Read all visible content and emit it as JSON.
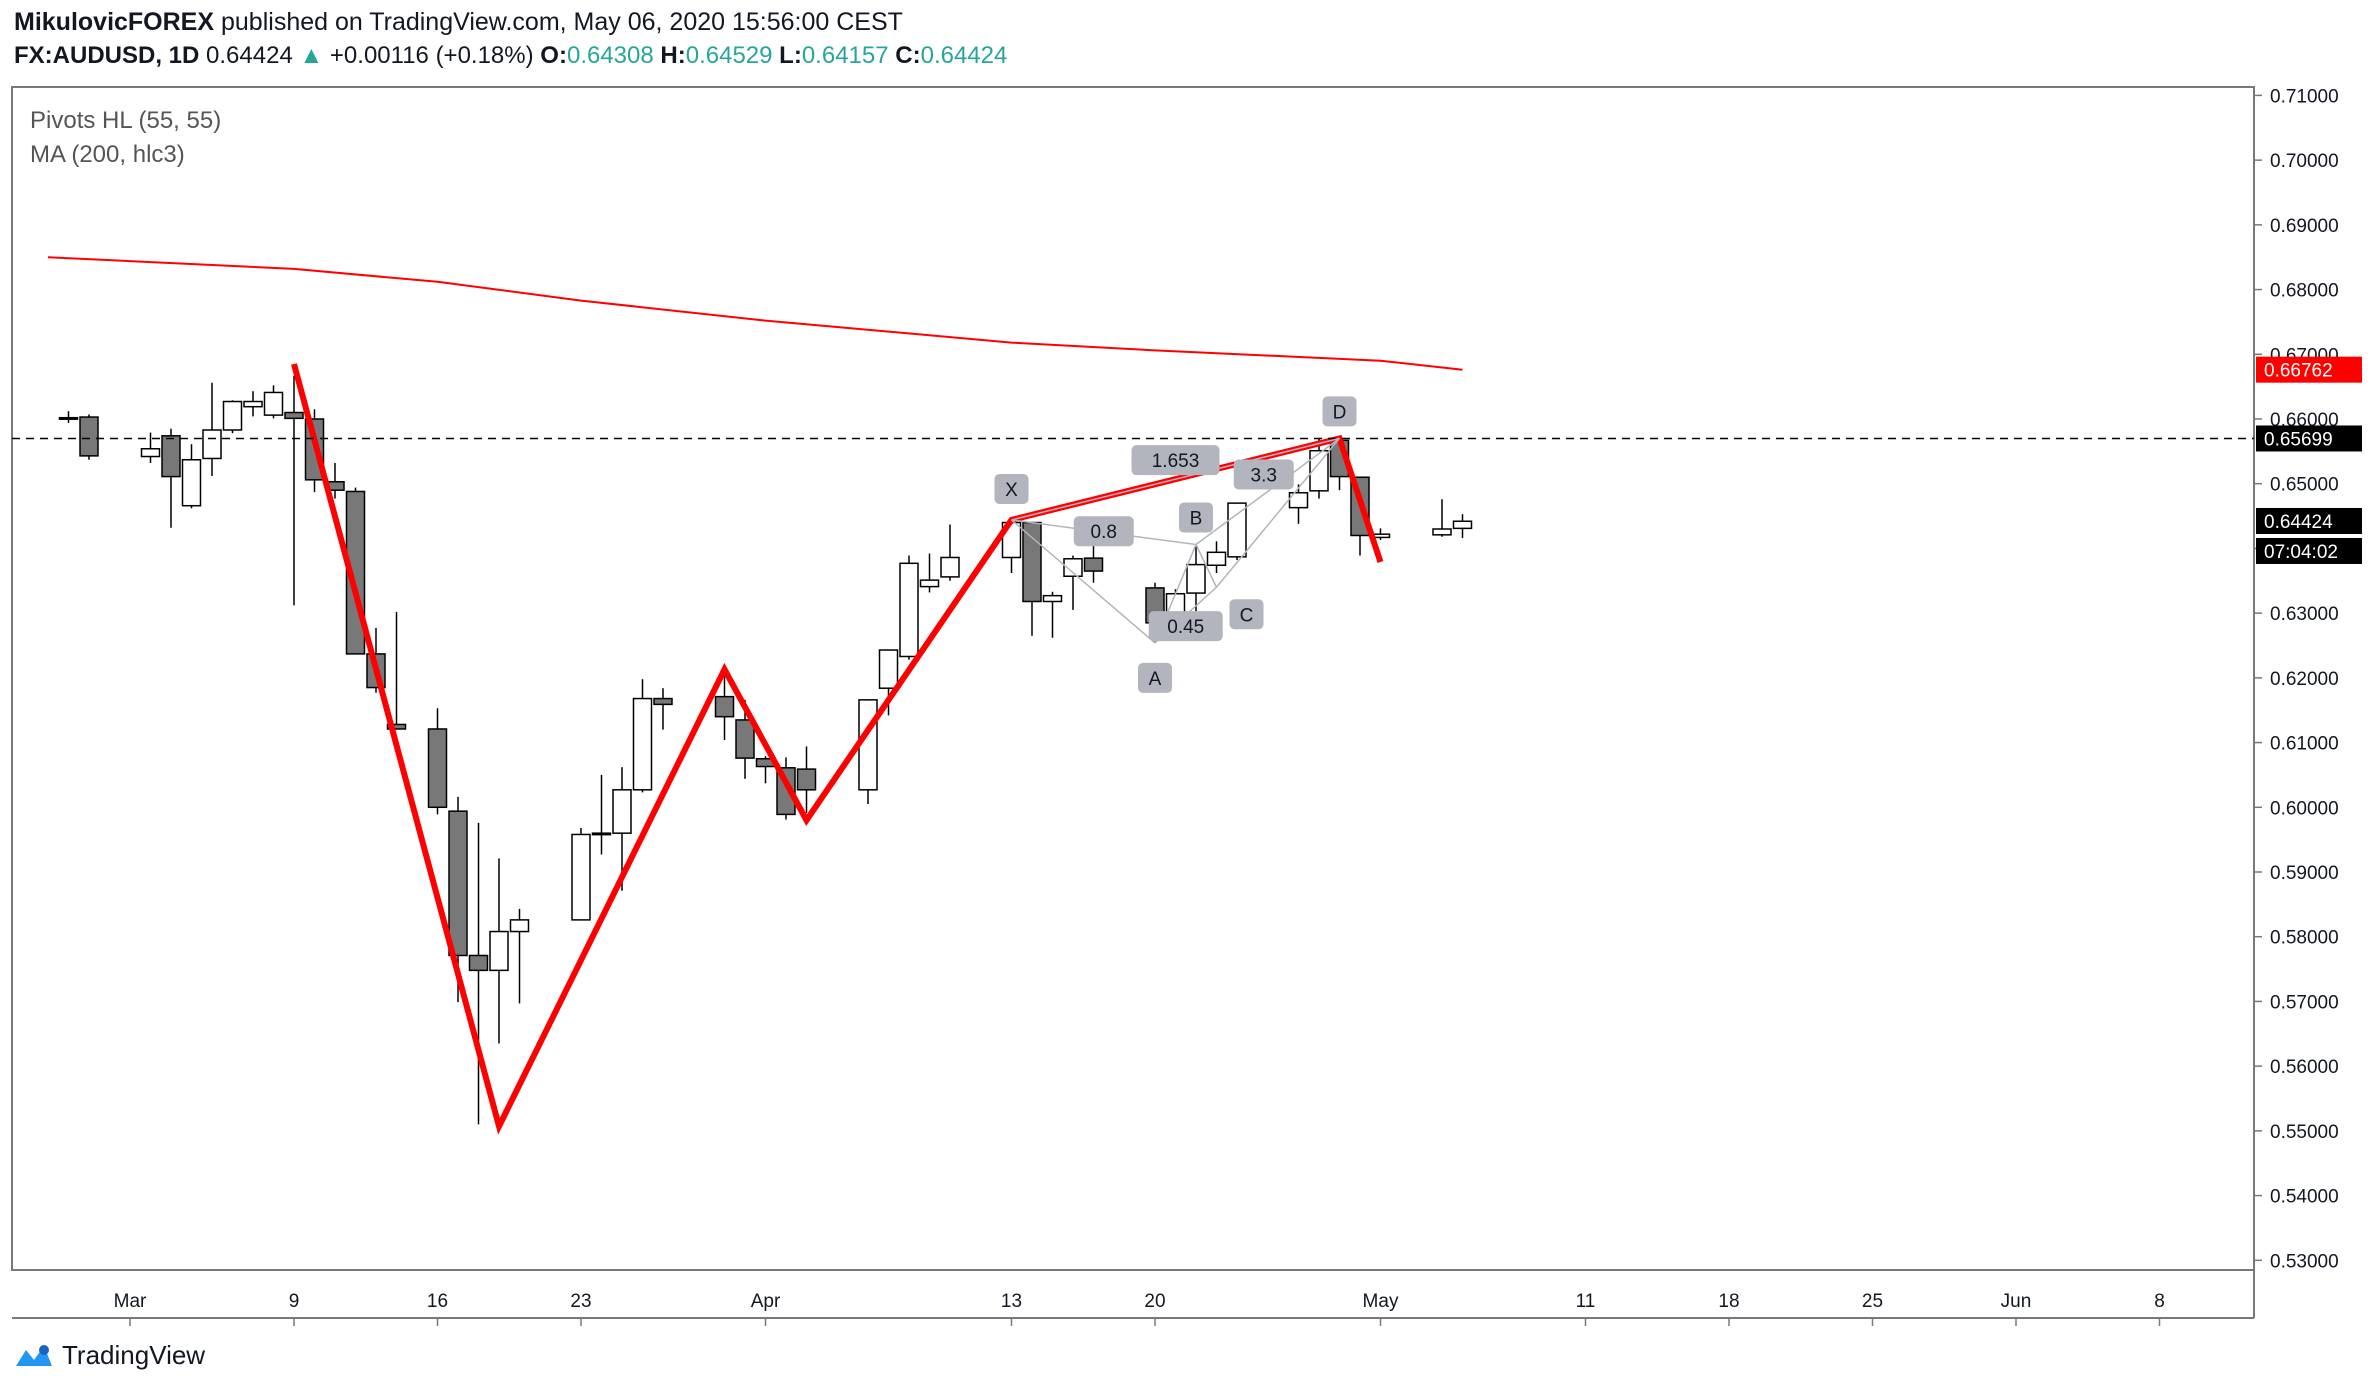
{
  "header": {
    "author": "MikulovicFOREX",
    "published_text": "published on TradingView.com, May 06, 2020 15:56:00 CEST",
    "symbol": "FX:AUDUSD",
    "interval": "1D",
    "last": "0.64424",
    "change": "+0.00116 (+0.18%)",
    "open_label": "O:",
    "open": "0.64308",
    "high_label": "H:",
    "high": "0.64529",
    "low_label": "L:",
    "low": "0.64157",
    "close_label": "C:",
    "close": "0.64424"
  },
  "indicators": {
    "pivots": "Pivots HL (55, 55)",
    "ma": "MA (200, hlc3)"
  },
  "footer": {
    "brand": "TradingView"
  },
  "colors": {
    "up_fill": "#ffffff",
    "down_fill": "#787878",
    "candle_border": "#000000",
    "zigzag": "#ff0000",
    "ma": "#ff0000",
    "pattern": "#b2b5be",
    "label_bg": "#b2b5be",
    "axis_text": "#131722"
  },
  "chart_data": {
    "type": "candlestick",
    "title": "",
    "y_axis": {
      "ticks": [
        "0.71000",
        "0.70000",
        "0.69000",
        "0.68000",
        "0.67000",
        "0.66000",
        "0.65000",
        "0.64000",
        "0.63000",
        "0.62000",
        "0.61000",
        "0.60000",
        "0.59000",
        "0.58000",
        "0.57000",
        "0.56000",
        "0.55000",
        "0.54000",
        "0.53000"
      ],
      "ylim": [
        0.5285,
        0.7113
      ]
    },
    "x_axis": {
      "ticks": [
        "Mar",
        "9",
        "16",
        "23",
        "Apr",
        "13",
        "20",
        "May",
        "11",
        "18",
        "25",
        "Jun",
        "8"
      ]
    },
    "candles": [
      {
        "d": "2020-02-27",
        "o": 0.6602,
        "h": 0.6612,
        "l": 0.6594,
        "c": 0.6602
      },
      {
        "d": "2020-02-28",
        "o": 0.6603,
        "h": 0.6607,
        "l": 0.6537,
        "c": 0.6543
      },
      {
        "d": "2020-03-02",
        "o": 0.6542,
        "h": 0.6579,
        "l": 0.6532,
        "c": 0.6554
      },
      {
        "d": "2020-03-03",
        "o": 0.6574,
        "h": 0.6585,
        "l": 0.6432,
        "c": 0.6511
      },
      {
        "d": "2020-03-04",
        "o": 0.6466,
        "h": 0.6561,
        "l": 0.6462,
        "c": 0.6537
      },
      {
        "d": "2020-03-05",
        "o": 0.6539,
        "h": 0.6656,
        "l": 0.6512,
        "c": 0.6583
      },
      {
        "d": "2020-03-06",
        "o": 0.6583,
        "h": 0.6629,
        "l": 0.6578,
        "c": 0.6627
      },
      {
        "d": "2020-03-07",
        "o": 0.6619,
        "h": 0.6643,
        "l": 0.6604,
        "c": 0.6627
      },
      {
        "d": "2020-03-08",
        "o": 0.6606,
        "h": 0.6652,
        "l": 0.6601,
        "c": 0.6641
      },
      {
        "d": "2020-03-09",
        "o": 0.661,
        "h": 0.6667,
        "l": 0.6312,
        "c": 0.6601
      },
      {
        "d": "2020-03-10",
        "o": 0.66,
        "h": 0.6615,
        "l": 0.6487,
        "c": 0.6506
      },
      {
        "d": "2020-03-11",
        "o": 0.6503,
        "h": 0.6532,
        "l": 0.6477,
        "c": 0.649
      },
      {
        "d": "2020-03-12",
        "o": 0.6488,
        "h": 0.6494,
        "l": 0.6237,
        "c": 0.6237
      },
      {
        "d": "2020-03-13",
        "o": 0.6237,
        "h": 0.6277,
        "l": 0.6177,
        "c": 0.6185
      },
      {
        "d": "2020-03-14",
        "o": 0.6128,
        "h": 0.6302,
        "l": 0.6121,
        "c": 0.6121
      },
      {
        "d": "2020-03-16",
        "o": 0.6121,
        "h": 0.6153,
        "l": 0.5989,
        "c": 0.6
      },
      {
        "d": "2020-03-17",
        "o": 0.5994,
        "h": 0.6016,
        "l": 0.5699,
        "c": 0.5771
      },
      {
        "d": "2020-03-18",
        "o": 0.5771,
        "h": 0.5976,
        "l": 0.551,
        "c": 0.5748
      },
      {
        "d": "2020-03-19",
        "o": 0.5748,
        "h": 0.5921,
        "l": 0.5635,
        "c": 0.5808
      },
      {
        "d": "2020-03-20",
        "o": 0.5808,
        "h": 0.5843,
        "l": 0.5697,
        "c": 0.5826
      },
      {
        "d": "2020-03-23",
        "o": 0.5826,
        "h": 0.5968,
        "l": 0.5826,
        "c": 0.5958
      },
      {
        "d": "2020-03-24",
        "o": 0.5958,
        "h": 0.605,
        "l": 0.5927,
        "c": 0.596
      },
      {
        "d": "2020-03-25",
        "o": 0.596,
        "h": 0.6062,
        "l": 0.5871,
        "c": 0.6027
      },
      {
        "d": "2020-03-26",
        "o": 0.6027,
        "h": 0.6198,
        "l": 0.6023,
        "c": 0.6168
      },
      {
        "d": "2020-03-27",
        "o": 0.6168,
        "h": 0.6184,
        "l": 0.612,
        "c": 0.6159
      },
      {
        "d": "2020-03-30",
        "o": 0.6171,
        "h": 0.6213,
        "l": 0.6104,
        "c": 0.614
      },
      {
        "d": "2020-03-31",
        "o": 0.6135,
        "h": 0.6166,
        "l": 0.6044,
        "c": 0.6076
      },
      {
        "d": "2020-04-01",
        "o": 0.6075,
        "h": 0.6079,
        "l": 0.6037,
        "c": 0.6063
      },
      {
        "d": "2020-04-02",
        "o": 0.6061,
        "h": 0.6077,
        "l": 0.5981,
        "c": 0.5989
      },
      {
        "d": "2020-04-03",
        "o": 0.6059,
        "h": 0.6094,
        "l": 0.5991,
        "c": 0.6027
      },
      {
        "d": "2020-04-06",
        "o": 0.6027,
        "h": 0.6166,
        "l": 0.6005,
        "c": 0.6166
      },
      {
        "d": "2020-04-07",
        "o": 0.6184,
        "h": 0.6238,
        "l": 0.6142,
        "c": 0.6243
      },
      {
        "d": "2020-04-08",
        "o": 0.6233,
        "h": 0.6389,
        "l": 0.6228,
        "c": 0.6377
      },
      {
        "d": "2020-04-09",
        "o": 0.6341,
        "h": 0.6392,
        "l": 0.6332,
        "c": 0.6351
      },
      {
        "d": "2020-04-10",
        "o": 0.6356,
        "h": 0.6437,
        "l": 0.635,
        "c": 0.6386
      },
      {
        "d": "2020-04-13",
        "o": 0.6386,
        "h": 0.6444,
        "l": 0.6362,
        "c": 0.644
      },
      {
        "d": "2020-04-14",
        "o": 0.644,
        "h": 0.6441,
        "l": 0.6265,
        "c": 0.6318
      },
      {
        "d": "2020-04-15",
        "o": 0.6318,
        "h": 0.6333,
        "l": 0.6262,
        "c": 0.6327
      },
      {
        "d": "2020-04-16",
        "o": 0.6357,
        "h": 0.6389,
        "l": 0.6305,
        "c": 0.6384
      },
      {
        "d": "2020-04-17",
        "o": 0.6385,
        "h": 0.6408,
        "l": 0.6347,
        "c": 0.6365
      },
      {
        "d": "2020-04-20",
        "o": 0.6339,
        "h": 0.6347,
        "l": 0.6254,
        "c": 0.6285
      },
      {
        "d": "2020-04-21",
        "o": 0.6285,
        "h": 0.6337,
        "l": 0.627,
        "c": 0.633
      },
      {
        "d": "2020-04-22",
        "o": 0.6331,
        "h": 0.6406,
        "l": 0.6294,
        "c": 0.6375
      },
      {
        "d": "2020-04-23",
        "o": 0.6374,
        "h": 0.6411,
        "l": 0.6362,
        "c": 0.6394
      },
      {
        "d": "2020-04-24",
        "o": 0.6387,
        "h": 0.6463,
        "l": 0.6382,
        "c": 0.647
      },
      {
        "d": "2020-04-27",
        "o": 0.6463,
        "h": 0.6499,
        "l": 0.6438,
        "c": 0.6486
      },
      {
        "d": "2020-04-28",
        "o": 0.6489,
        "h": 0.6569,
        "l": 0.6477,
        "c": 0.6551
      },
      {
        "d": "2020-04-29",
        "o": 0.6567,
        "h": 0.657,
        "l": 0.649,
        "c": 0.6511
      },
      {
        "d": "2020-04-30",
        "o": 0.651,
        "h": 0.651,
        "l": 0.6389,
        "c": 0.642
      },
      {
        "d": "2020-05-01",
        "o": 0.6417,
        "h": 0.6431,
        "l": 0.6413,
        "c": 0.6422
      },
      {
        "d": "2020-05-04",
        "o": 0.6421,
        "h": 0.6476,
        "l": 0.6418,
        "c": 0.643
      },
      {
        "d": "2020-05-05",
        "o": 0.6431,
        "h": 0.6453,
        "l": 0.6416,
        "c": 0.6442
      }
    ],
    "moving_average": {
      "name": "MA (200, hlc3)",
      "points": [
        {
          "d": "2020-02-26",
          "v": 0.685
        },
        {
          "d": "2020-03-09",
          "v": 0.6832
        },
        {
          "d": "2020-03-16",
          "v": 0.6812
        },
        {
          "d": "2020-03-23",
          "v": 0.6783
        },
        {
          "d": "2020-04-01",
          "v": 0.6752
        },
        {
          "d": "2020-04-13",
          "v": 0.6718
        },
        {
          "d": "2020-04-20",
          "v": 0.6706
        },
        {
          "d": "2020-05-01",
          "v": 0.669
        },
        {
          "d": "2020-05-05",
          "v": 0.6676
        }
      ]
    },
    "zigzag": [
      {
        "d": "2020-03-09",
        "v": 0.6685
      },
      {
        "d": "2020-03-19",
        "v": 0.5507
      },
      {
        "d": "2020-03-30",
        "v": 0.6213
      },
      {
        "d": "2020-04-03",
        "v": 0.598
      },
      {
        "d": "2020-04-13",
        "v": 0.6444
      },
      {
        "d": "2020-04-29",
        "v": 0.657
      },
      {
        "d": "2020-05-01",
        "v": 0.6379
      }
    ],
    "harmonic_pattern": {
      "points": [
        {
          "label": "X",
          "d": "2020-04-13",
          "v": 0.6444
        },
        {
          "label": "A",
          "d": "2020-04-20",
          "v": 0.6254
        },
        {
          "label": "B",
          "d": "2020-04-22",
          "v": 0.6406
        },
        {
          "label": "C",
          "d": "2020-04-23",
          "v": 0.634
        },
        {
          "label": "D",
          "d": "2020-04-29",
          "v": 0.657
        }
      ],
      "ratios": [
        {
          "label": "1.653",
          "between": "X-D"
        },
        {
          "label": "0.8",
          "between": "X-B"
        },
        {
          "label": "3.3",
          "between": "B-D"
        },
        {
          "label": "0.45",
          "between": "A-C"
        }
      ]
    },
    "horizontal_line": {
      "value": 0.65699,
      "style": "dashed"
    },
    "price_labels": [
      {
        "value": 0.66762,
        "text": "0.66762",
        "color": "#ff0000"
      },
      {
        "value": 0.65699,
        "text": "0.65699",
        "color": "#000000"
      },
      {
        "value": 0.64424,
        "text": "0.64424",
        "color": "#000000"
      }
    ],
    "countdown": "07:04:02"
  }
}
